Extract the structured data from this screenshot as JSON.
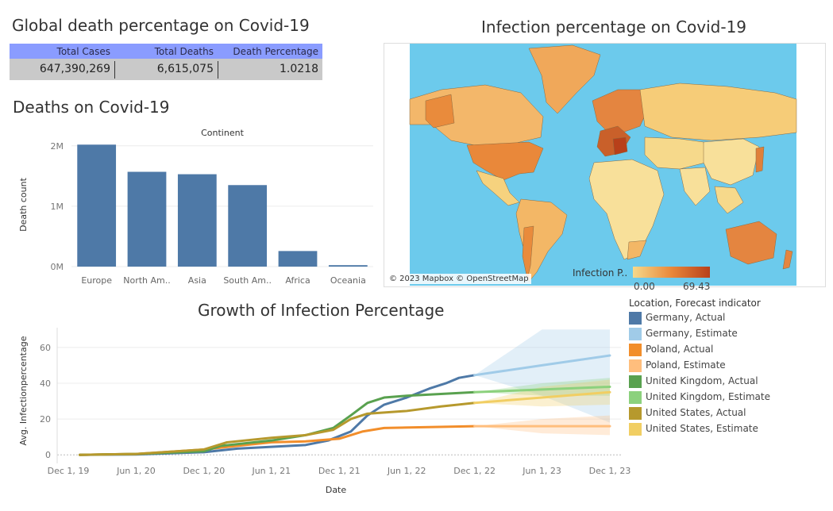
{
  "kpi": {
    "title": "Global death percentage on Covid-19",
    "headers": [
      "Total Cases",
      "Total Deaths",
      "Death Percentage"
    ],
    "values": [
      "647,390,269",
      "6,615,075",
      "1.0218"
    ]
  },
  "map": {
    "title": "Infection percentage on Covid-19",
    "credit": "© 2023 Mapbox © OpenStreetMap",
    "legend_label": "Infection P..",
    "legend_min": "0.00",
    "legend_max": "69.43",
    "ocean_color": "#6ccaec",
    "scale_low": "#f6d98b",
    "scale_high": "#b8401a"
  },
  "chart_data": [
    {
      "type": "bar",
      "title": "Deaths on Covid-19",
      "header": "Continent",
      "ylabel": "Death count",
      "categories": [
        "Europe",
        "North Am..",
        "Asia",
        "South Am..",
        "Africa",
        "Oceania"
      ],
      "values": [
        2020000,
        1570000,
        1530000,
        1350000,
        258000,
        24000
      ],
      "ylim": [
        0,
        2050000
      ],
      "yticks": [
        0,
        1000000,
        2000000
      ],
      "ytick_labels": [
        "0M",
        "1M",
        "2M"
      ],
      "color": "#4e79a7"
    },
    {
      "type": "line",
      "title": "Growth of Infection Percentage",
      "xlabel": "Date",
      "ylabel": "Avg. Infectionpercentage",
      "xlim": [
        "2019-11-01",
        "2023-12-31"
      ],
      "ylim": [
        -3,
        71
      ],
      "yticks": [
        0,
        20,
        40,
        60
      ],
      "xticks": [
        "2019-12-01",
        "2020-06-01",
        "2020-12-01",
        "2021-06-01",
        "2021-12-01",
        "2022-06-01",
        "2022-12-01",
        "2023-06-01",
        "2023-12-01"
      ],
      "xtick_labels": [
        "Dec 1, 19",
        "Jun 1, 20",
        "Dec 1, 20",
        "Jun 1, 21",
        "Dec 1, 21",
        "Jun 1, 22",
        "Dec 1, 22",
        "Jun 1, 23",
        "Dec 1, 23"
      ],
      "legend_title": "Location, Forecast indicator",
      "series": [
        {
          "name": "Germany, Actual",
          "color": "#4e79a7",
          "kind": "actual",
          "points": [
            [
              "2020-01-01",
              0
            ],
            [
              "2020-06-01",
              0.2
            ],
            [
              "2020-12-01",
              1.5
            ],
            [
              "2021-03-01",
              3.5
            ],
            [
              "2021-06-01",
              4.5
            ],
            [
              "2021-09-01",
              5.5
            ],
            [
              "2021-11-01",
              8
            ],
            [
              "2022-01-01",
              13
            ],
            [
              "2022-02-15",
              22
            ],
            [
              "2022-04-01",
              28
            ],
            [
              "2022-06-01",
              32
            ],
            [
              "2022-08-01",
              37
            ],
            [
              "2022-09-15",
              40
            ],
            [
              "2022-10-20",
              43
            ],
            [
              "2022-12-01",
              44.5
            ]
          ]
        },
        {
          "name": "Germany, Estimate",
          "color": "#a0cbe8",
          "kind": "estimate",
          "points": [
            [
              "2022-12-01",
              44.5
            ],
            [
              "2023-06-01",
              50
            ],
            [
              "2023-12-01",
              55.5
            ]
          ],
          "band": [
            [
              "2022-12-01",
              44.5,
              44.5
            ],
            [
              "2023-06-01",
              70,
              33
            ],
            [
              "2023-12-01",
              70,
              18
            ]
          ]
        },
        {
          "name": "Poland, Actual",
          "color": "#f28e2b",
          "kind": "actual",
          "points": [
            [
              "2020-01-01",
              0
            ],
            [
              "2020-06-01",
              0.5
            ],
            [
              "2020-12-01",
              3
            ],
            [
              "2021-03-01",
              5
            ],
            [
              "2021-06-01",
              7
            ],
            [
              "2021-09-01",
              7.5
            ],
            [
              "2021-12-01",
              9
            ],
            [
              "2022-02-01",
              13
            ],
            [
              "2022-04-01",
              15
            ],
            [
              "2022-08-01",
              15.5
            ],
            [
              "2022-12-01",
              16
            ]
          ]
        },
        {
          "name": "Poland, Estimate",
          "color": "#ffbe7d",
          "kind": "estimate",
          "points": [
            [
              "2022-12-01",
              16
            ],
            [
              "2023-06-01",
              16
            ],
            [
              "2023-12-01",
              16
            ]
          ],
          "band": [
            [
              "2022-12-01",
              16,
              16
            ],
            [
              "2023-06-01",
              20,
              12
            ],
            [
              "2023-12-01",
              22,
              11
            ]
          ]
        },
        {
          "name": "United Kingdom, Actual",
          "color": "#59a14f",
          "kind": "actual",
          "points": [
            [
              "2020-01-01",
              0
            ],
            [
              "2020-06-01",
              0.5
            ],
            [
              "2020-12-01",
              2
            ],
            [
              "2021-01-15",
              5
            ],
            [
              "2021-03-01",
              6
            ],
            [
              "2021-06-01",
              8
            ],
            [
              "2021-09-01",
              11
            ],
            [
              "2021-11-15",
              15
            ],
            [
              "2022-01-01",
              22
            ],
            [
              "2022-02-15",
              29
            ],
            [
              "2022-04-01",
              32
            ],
            [
              "2022-06-01",
              33
            ],
            [
              "2022-09-01",
              34
            ],
            [
              "2022-12-01",
              35
            ]
          ]
        },
        {
          "name": "United Kingdom, Estimate",
          "color": "#8cd17d",
          "kind": "estimate",
          "points": [
            [
              "2022-12-01",
              35
            ],
            [
              "2023-06-01",
              36.5
            ],
            [
              "2023-12-01",
              38
            ]
          ],
          "band": [
            [
              "2022-12-01",
              35,
              35
            ],
            [
              "2023-06-01",
              40,
              33
            ],
            [
              "2023-12-01",
              43,
              33
            ]
          ]
        },
        {
          "name": "United States, Actual",
          "color": "#b6992d",
          "kind": "actual",
          "points": [
            [
              "2020-01-01",
              0
            ],
            [
              "2020-06-01",
              0.5
            ],
            [
              "2020-12-01",
              3
            ],
            [
              "2021-02-01",
              7
            ],
            [
              "2021-06-01",
              9.5
            ],
            [
              "2021-09-01",
              11
            ],
            [
              "2021-11-15",
              14
            ],
            [
              "2022-01-01",
              20
            ],
            [
              "2022-02-15",
              23
            ],
            [
              "2022-06-01",
              24.5
            ],
            [
              "2022-09-01",
              27
            ],
            [
              "2022-12-01",
              29
            ]
          ]
        },
        {
          "name": "United States, Estimate",
          "color": "#f1ce63",
          "kind": "estimate",
          "points": [
            [
              "2022-12-01",
              29
            ],
            [
              "2023-06-01",
              32
            ],
            [
              "2023-12-01",
              35
            ]
          ],
          "band": [
            [
              "2022-12-01",
              29,
              29
            ],
            [
              "2023-06-01",
              38,
              27
            ],
            [
              "2023-12-01",
              42,
              28
            ]
          ]
        }
      ]
    }
  ]
}
